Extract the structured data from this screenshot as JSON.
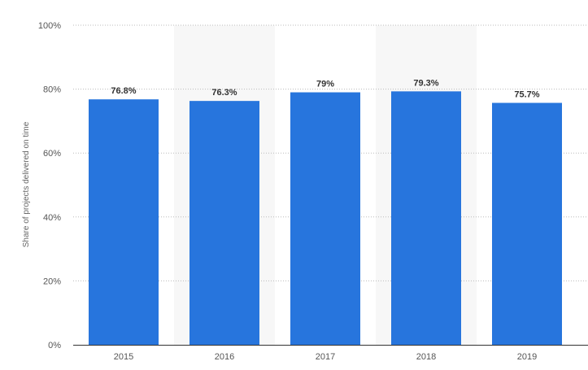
{
  "chart_data": {
    "type": "bar",
    "categories": [
      "2015",
      "2016",
      "2017",
      "2018",
      "2019"
    ],
    "values": [
      76.8,
      76.3,
      79,
      79.3,
      75.7
    ],
    "data_labels": [
      "76.8%",
      "76.3%",
      "79%",
      "79.3%",
      "75.7%"
    ],
    "title": "",
    "xlabel": "",
    "ylabel": "Share of projects delivered on time",
    "ylim": [
      0,
      100
    ],
    "yticks": [
      0,
      20,
      40,
      60,
      80,
      100
    ],
    "ytick_labels": [
      "0%",
      "20%",
      "40%",
      "60%",
      "80%",
      "100%"
    ],
    "grid": true,
    "bar_color": "#2775dd"
  }
}
